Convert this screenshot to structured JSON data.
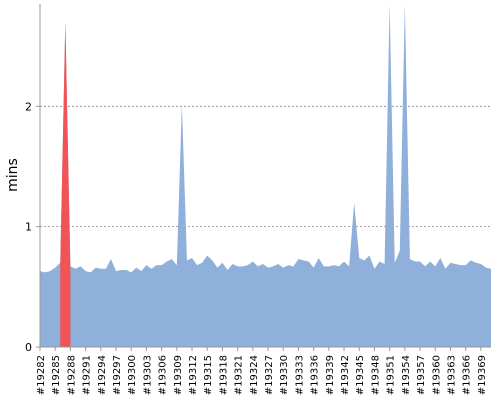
{
  "chart_data": {
    "type": "area",
    "ylabel": "mins",
    "ylim": [
      0,
      2.85
    ],
    "yticks": [
      0,
      1,
      2
    ],
    "grid": "horizontal-dashed",
    "colors": {
      "series": "#8fb0db",
      "highlight": "#f05454",
      "grid": "#888888"
    },
    "x_tick_labels": [
      "#19282",
      "#19285",
      "#19288",
      "#19291",
      "#19294",
      "#19297",
      "#19300",
      "#19303",
      "#19306",
      "#19309",
      "#19312",
      "#19315",
      "#19318",
      "#19321",
      "#19324",
      "#19327",
      "#19330",
      "#19333",
      "#19336",
      "#19339",
      "#19342",
      "#19345",
      "#19348",
      "#19351",
      "#19354",
      "#19357",
      "#19360",
      "#19363",
      "#19366",
      "#19369"
    ],
    "x_start": 19282,
    "x_end": 19371,
    "highlight": {
      "from": 19286,
      "to": 19288
    },
    "values": [
      0.63,
      0.62,
      0.63,
      0.66,
      0.7,
      2.7,
      0.67,
      0.65,
      0.67,
      0.63,
      0.62,
      0.66,
      0.65,
      0.65,
      0.73,
      0.63,
      0.64,
      0.64,
      0.62,
      0.66,
      0.63,
      0.68,
      0.65,
      0.68,
      0.68,
      0.71,
      0.73,
      0.68,
      2.02,
      0.72,
      0.74,
      0.68,
      0.7,
      0.76,
      0.72,
      0.66,
      0.7,
      0.64,
      0.69,
      0.67,
      0.67,
      0.68,
      0.71,
      0.67,
      0.69,
      0.66,
      0.67,
      0.69,
      0.66,
      0.68,
      0.67,
      0.73,
      0.72,
      0.71,
      0.66,
      0.74,
      0.67,
      0.67,
      0.68,
      0.67,
      0.71,
      0.67,
      1.2,
      0.74,
      0.72,
      0.76,
      0.65,
      0.71,
      0.69,
      2.9,
      0.7,
      0.8,
      2.9,
      0.73,
      0.71,
      0.71,
      0.67,
      0.71,
      0.67,
      0.74,
      0.65,
      0.7,
      0.69,
      0.68,
      0.68,
      0.72,
      0.7,
      0.69,
      0.66,
      0.65
    ]
  }
}
